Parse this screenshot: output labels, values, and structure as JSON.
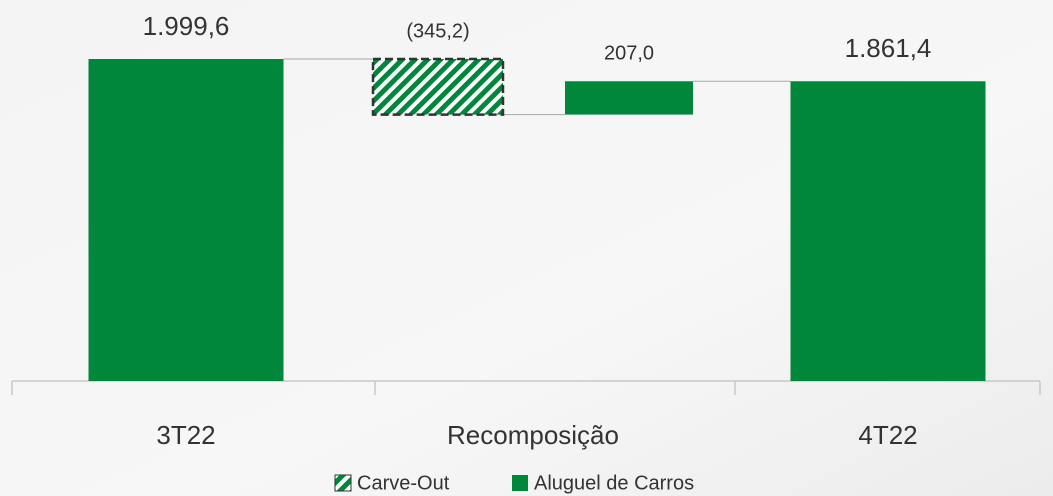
{
  "chart_data": {
    "type": "waterfall",
    "categories": [
      "3T22",
      "Recomposição",
      null,
      "4T22"
    ],
    "measure": [
      "absolute",
      "relative",
      "relative",
      "total"
    ],
    "series": [
      {
        "name": "Carve-Out",
        "color": "#00873c",
        "pattern": "hatch",
        "values": [
          null,
          -345.2,
          null,
          null
        ],
        "value_labels": [
          null,
          "(345,2)",
          null,
          null
        ]
      },
      {
        "name": "Aluguel de Carros",
        "color": "#00873c",
        "values": [
          1999.6,
          null,
          207.0,
          1861.4
        ],
        "value_labels": [
          "1.999,6",
          null,
          "207,0",
          "1.861,4"
        ]
      }
    ],
    "legend": "bottom"
  }
}
